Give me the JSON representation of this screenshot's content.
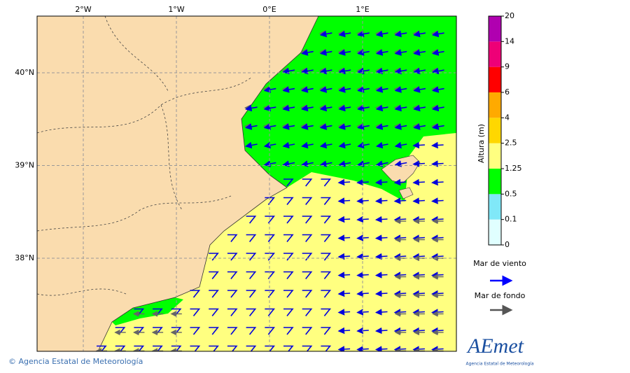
{
  "map": {
    "lon_ticks": [
      {
        "value": -2,
        "label": "2°W"
      },
      {
        "value": -1,
        "label": "1°W"
      },
      {
        "value": 0,
        "label": "0°E"
      },
      {
        "value": 1,
        "label": "1°E"
      }
    ],
    "lat_ticks": [
      {
        "value": 40,
        "label": "40°N"
      },
      {
        "value": 39,
        "label": "39°N"
      },
      {
        "value": 38,
        "label": "38°N"
      }
    ]
  },
  "colorbar": {
    "title": "Altura (m)",
    "levels": [
      0,
      0.1,
      0.5,
      1.25,
      2.5,
      4,
      6,
      9,
      14,
      20
    ],
    "colors": [
      "#e0ffff",
      "#80e8f8",
      "#00ff00",
      "#ffff80",
      "#ffd700",
      "#ffaa00",
      "#ff0000",
      "#ee0077",
      "#b000b0"
    ]
  },
  "legend": {
    "wind_sea": "Mar de viento",
    "swell": "Mar de fondo"
  },
  "footer": {
    "copyright": "© Agencia Estatal de Meteorología",
    "logo": "AEmet",
    "logo_subtitle": "Agencia Estatal de Meteorología"
  }
}
